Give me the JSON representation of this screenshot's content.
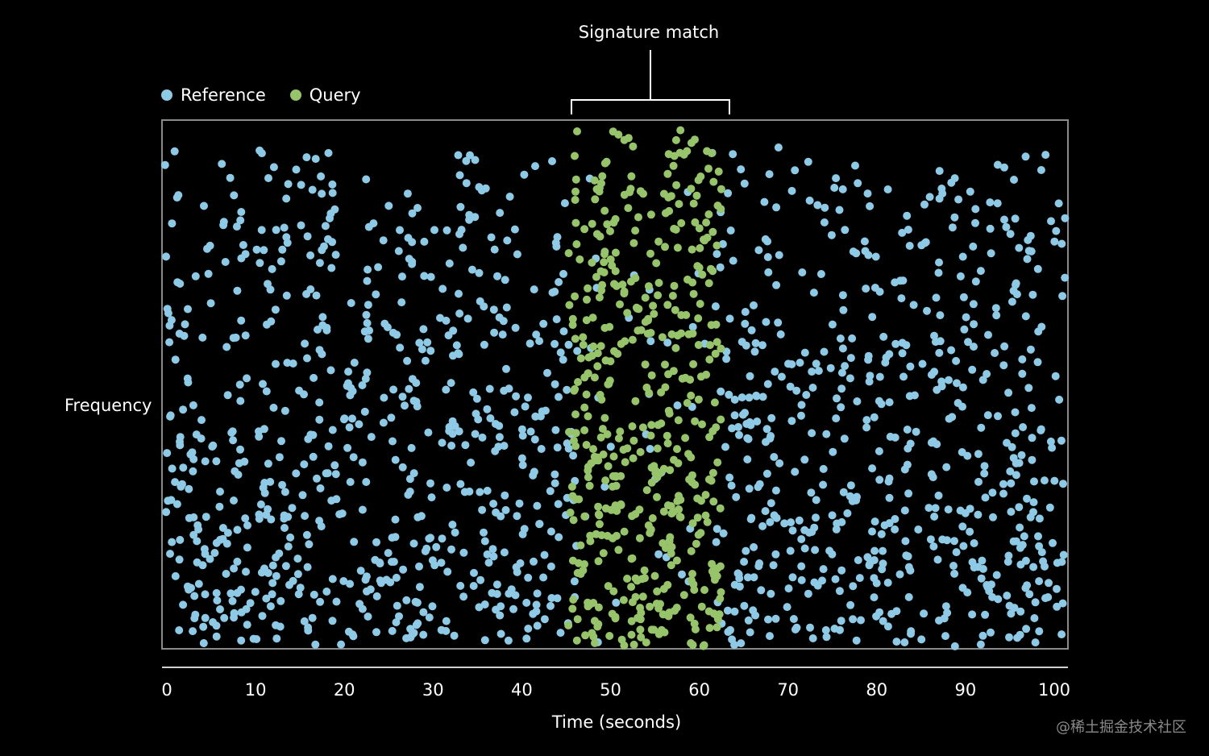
{
  "chart_data": {
    "type": "scatter",
    "title": "",
    "annotation": "Signature match",
    "annotation_range": [
      46,
      64
    ],
    "xlabel": "Time (seconds)",
    "ylabel": "Frequency",
    "xlim": [
      0,
      100
    ],
    "xticks": [
      0,
      10,
      20,
      30,
      40,
      50,
      60,
      70,
      80,
      90,
      100
    ],
    "legend_position": "top-left",
    "series": [
      {
        "name": "Reference",
        "color": "#8ec9e6"
      },
      {
        "name": "Query",
        "color": "#97c46a"
      }
    ]
  },
  "watermark": "@稀土掘金技术社区"
}
